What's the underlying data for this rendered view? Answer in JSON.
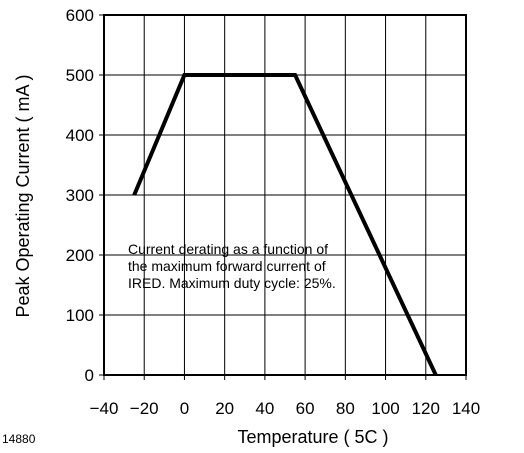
{
  "figure_id": "14880",
  "chart_data": {
    "type": "line",
    "xlabel": "Temperature ( 5C )",
    "ylabel": "Peak Operating Current ( mA )",
    "xlim": [
      -40,
      140
    ],
    "ylim": [
      0,
      600
    ],
    "x_ticks": [
      -40,
      -20,
      0,
      20,
      40,
      60,
      80,
      100,
      120,
      140
    ],
    "y_ticks": [
      0,
      100,
      200,
      300,
      400,
      500,
      600
    ],
    "grid": true,
    "series": [
      {
        "x": [
          -25,
          0,
          55,
          125
        ],
        "y": [
          300,
          500,
          500,
          0
        ]
      }
    ],
    "annotation": {
      "lines": [
        "Current derating as a function of",
        "the maximum forward current of",
        "IRED. Maximum duty cycle: 25%."
      ]
    }
  }
}
